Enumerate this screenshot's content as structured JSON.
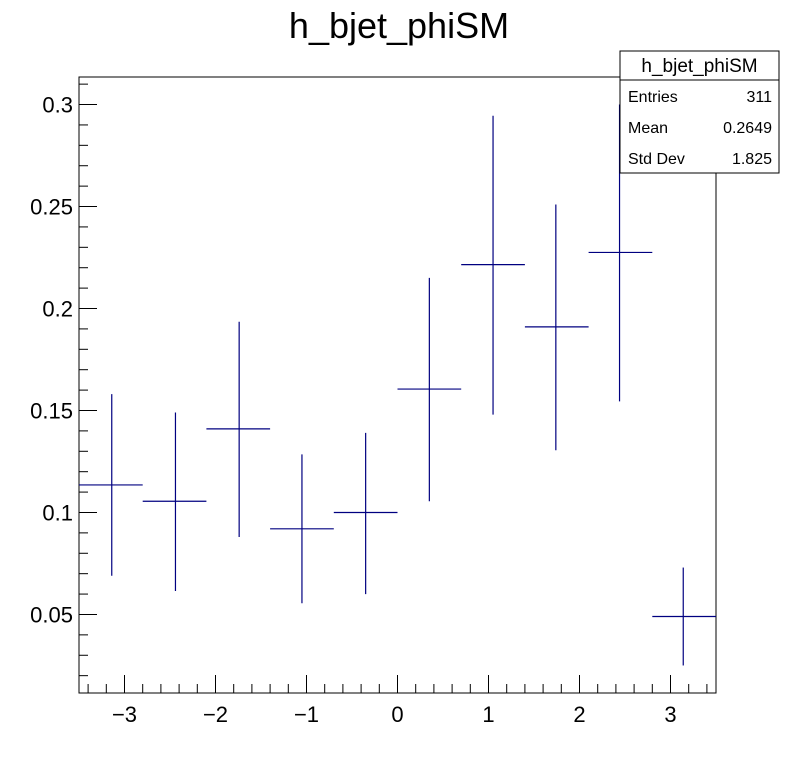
{
  "chart_data": {
    "type": "scatter",
    "title": "h_bjet_phiSM",
    "xlabel": "",
    "ylabel": "",
    "xlim": [
      -3.5,
      3.5
    ],
    "ylim": [
      0.0115,
      0.3135
    ],
    "grid": false,
    "x_ticks": [
      -3,
      -2,
      -1,
      0,
      1,
      2,
      3
    ],
    "x_tick_labels": [
      "−3",
      "−2",
      "−1",
      "0",
      "1",
      "2",
      "3"
    ],
    "y_ticks": [
      0.05,
      0.1,
      0.15,
      0.2,
      0.25,
      0.3
    ],
    "y_tick_labels": [
      "0.05",
      "0.1",
      "0.15",
      "0.2",
      "0.25",
      "0.3"
    ],
    "series": [
      {
        "color": "#000080",
        "points": [
          {
            "x": -3.14,
            "xlo": -3.5,
            "xhi": -2.8,
            "y": 0.1135,
            "ylo": 0.069,
            "yhi": 0.158
          },
          {
            "x": -2.44,
            "xlo": -2.8,
            "xhi": -2.1,
            "y": 0.1055,
            "ylo": 0.0615,
            "yhi": 0.149
          },
          {
            "x": -1.74,
            "xlo": -2.1,
            "xhi": -1.4,
            "y": 0.141,
            "ylo": 0.088,
            "yhi": 0.1935
          },
          {
            "x": -1.05,
            "xlo": -1.4,
            "xhi": -0.7,
            "y": 0.092,
            "ylo": 0.0555,
            "yhi": 0.1285
          },
          {
            "x": -0.35,
            "xlo": -0.7,
            "xhi": 0.0,
            "y": 0.1,
            "ylo": 0.06,
            "yhi": 0.139
          },
          {
            "x": 0.35,
            "xlo": 0.0,
            "xhi": 0.7,
            "y": 0.1605,
            "ylo": 0.1055,
            "yhi": 0.215
          },
          {
            "x": 1.05,
            "xlo": 0.7,
            "xhi": 1.4,
            "y": 0.2215,
            "ylo": 0.148,
            "yhi": 0.2945
          },
          {
            "x": 1.74,
            "xlo": 1.4,
            "xhi": 2.1,
            "y": 0.191,
            "ylo": 0.1305,
            "yhi": 0.251
          },
          {
            "x": 2.44,
            "xlo": 2.1,
            "xhi": 2.8,
            "y": 0.2275,
            "ylo": 0.1545,
            "yhi": 0.3
          },
          {
            "x": 3.14,
            "xlo": 2.8,
            "xhi": 3.5,
            "y": 0.049,
            "ylo": 0.025,
            "yhi": 0.073
          }
        ]
      }
    ],
    "stats_box": {
      "title": "h_bjet_phiSM",
      "rows": [
        {
          "label": "Entries",
          "value": "311"
        },
        {
          "label": "Mean",
          "value": "0.2649"
        },
        {
          "label": "Std Dev",
          "value": "1.825"
        }
      ]
    }
  }
}
